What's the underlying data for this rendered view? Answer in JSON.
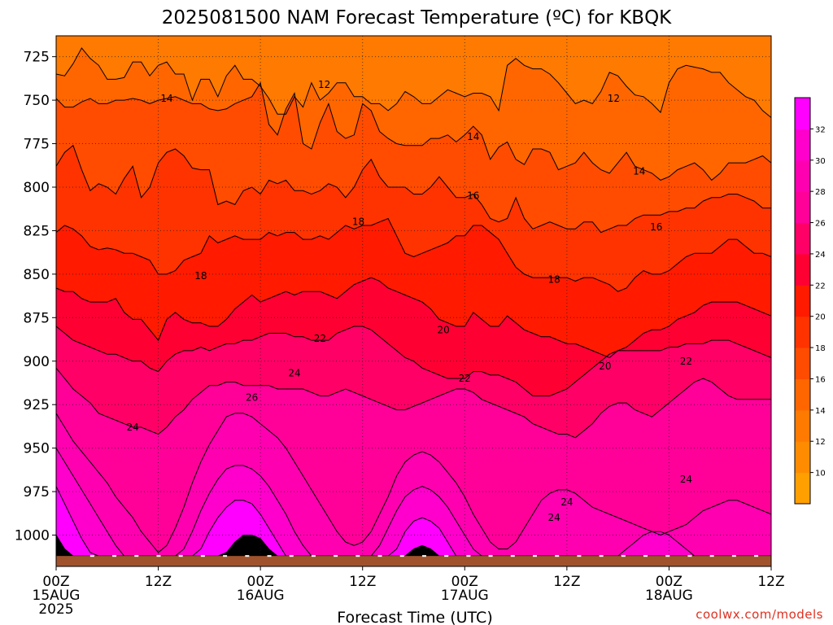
{
  "title": "2025081500 NAM Forecast Temperature (ºC) for KBQK",
  "credit": "coolwx.com/models",
  "chart_data": {
    "type": "heatmap",
    "title": "2025081500 NAM Forecast Temperature (ºC) for KBQK",
    "xlabel": "Forecast Time (UTC)",
    "ylabel": "",
    "x_range_hours": [
      0,
      84
    ],
    "y_range_hpa": [
      713,
      1018
    ],
    "ground_level_hpa": 1012,
    "y_ticks": [
      725,
      750,
      775,
      800,
      825,
      850,
      875,
      900,
      925,
      950,
      975,
      1000
    ],
    "x_ticks": [
      {
        "hour": 0,
        "label": "00Z",
        "date": "15AUG",
        "year": "2025"
      },
      {
        "hour": 12,
        "label": "12Z",
        "date": "",
        "year": ""
      },
      {
        "hour": 24,
        "label": "00Z",
        "date": "16AUG",
        "year": ""
      },
      {
        "hour": 36,
        "label": "12Z",
        "date": "",
        "year": ""
      },
      {
        "hour": 48,
        "label": "00Z",
        "date": "17AUG",
        "year": ""
      },
      {
        "hour": 60,
        "label": "12Z",
        "date": "",
        "year": ""
      },
      {
        "hour": 72,
        "label": "00Z",
        "date": "18AUG",
        "year": ""
      },
      {
        "hour": 84,
        "label": "12Z",
        "date": "",
        "year": ""
      }
    ],
    "colorbar": {
      "levels": [
        8,
        10,
        12,
        14,
        16,
        18,
        20,
        22,
        24,
        26,
        28,
        30,
        32,
        34
      ],
      "labels": [
        "10",
        "12",
        "14",
        "16",
        "18",
        "20",
        "22",
        "24",
        "26",
        "28",
        "30",
        "32"
      ],
      "colors": [
        "#ff9f00",
        "#ff8c00",
        "#ff7a00",
        "#ff6600",
        "#ff4c00",
        "#ff3300",
        "#ff1a00",
        "#ff0033",
        "#ff0066",
        "#ff0099",
        "#ff00b0",
        "#ff00cc",
        "#ff00ff"
      ]
    },
    "isotherms": [
      {
        "value": 12,
        "pressures": [
          735,
          736,
          729,
          720,
          726,
          730,
          738,
          738,
          737,
          728,
          728,
          736,
          730,
          728,
          735,
          735,
          750,
          738,
          738,
          748,
          736,
          730,
          738,
          738,
          742,
          749,
          758,
          758,
          748,
          754,
          740,
          750,
          746,
          740,
          740,
          748,
          748,
          752,
          752,
          756,
          752,
          745,
          748,
          752,
          752,
          748,
          744,
          746,
          748,
          746,
          746,
          748,
          756,
          730,
          726,
          730,
          732,
          732,
          735,
          740,
          746,
          752,
          750,
          752,
          745,
          734,
          736,
          742,
          747,
          748,
          752,
          757,
          740,
          732,
          730,
          731,
          732,
          734,
          734,
          740,
          744,
          748,
          750,
          756,
          760
        ]
      },
      {
        "value": 14,
        "pressures": [
          749,
          754,
          754,
          751,
          749,
          752,
          752,
          750,
          750,
          749,
          750,
          752,
          750,
          749,
          748,
          750,
          752,
          752,
          755,
          756,
          755,
          752,
          750,
          748,
          740,
          764,
          770,
          755,
          746,
          775,
          778,
          763,
          752,
          768,
          772,
          770,
          752,
          756,
          768,
          772,
          775,
          776,
          776,
          776,
          772,
          772,
          770,
          774,
          770,
          765,
          770,
          784,
          777,
          774,
          784,
          787,
          778,
          778,
          780,
          790,
          788,
          786,
          780,
          786,
          790,
          792,
          786,
          780,
          788,
          790,
          792,
          796,
          794,
          790,
          788,
          786,
          790,
          796,
          792,
          786,
          786,
          786,
          784,
          782,
          786
        ]
      },
      {
        "value": 16,
        "pressures": [
          788,
          780,
          776,
          790,
          802,
          798,
          800,
          804,
          795,
          788,
          806,
          800,
          786,
          780,
          778,
          782,
          789,
          790,
          790,
          810,
          808,
          810,
          802,
          800,
          804,
          796,
          798,
          796,
          802,
          802,
          804,
          802,
          798,
          800,
          806,
          800,
          790,
          784,
          794,
          800,
          800,
          800,
          804,
          804,
          800,
          794,
          800,
          806,
          806,
          804,
          810,
          818,
          820,
          818,
          806,
          818,
          824,
          822,
          820,
          822,
          824,
          824,
          820,
          820,
          826,
          824,
          822,
          822,
          818,
          816,
          816,
          816,
          814,
          814,
          812,
          812,
          808,
          806,
          806,
          804,
          804,
          806,
          808,
          812,
          812
        ]
      },
      {
        "value": 18,
        "pressures": [
          826,
          822,
          824,
          828,
          834,
          836,
          835,
          836,
          838,
          838,
          840,
          842,
          850,
          850,
          848,
          842,
          840,
          838,
          828,
          832,
          830,
          828,
          830,
          830,
          830,
          826,
          828,
          826,
          826,
          830,
          830,
          828,
          830,
          826,
          822,
          824,
          822,
          822,
          820,
          818,
          828,
          838,
          840,
          838,
          836,
          834,
          832,
          828,
          828,
          822,
          822,
          826,
          830,
          838,
          846,
          850,
          852,
          852,
          852,
          852,
          852,
          854,
          852,
          852,
          854,
          856,
          860,
          858,
          852,
          848,
          850,
          850,
          848,
          844,
          840,
          838,
          838,
          838,
          834,
          830,
          830,
          834,
          838,
          838,
          840
        ]
      },
      {
        "value": 20,
        "pressures": [
          858,
          860,
          860,
          864,
          866,
          866,
          866,
          864,
          872,
          876,
          876,
          882,
          888,
          876,
          872,
          876,
          878,
          878,
          880,
          880,
          876,
          870,
          866,
          862,
          866,
          864,
          862,
          860,
          862,
          860,
          860,
          860,
          862,
          864,
          860,
          856,
          854,
          852,
          854,
          858,
          860,
          862,
          864,
          866,
          870,
          876,
          878,
          880,
          880,
          872,
          876,
          880,
          880,
          874,
          878,
          882,
          884,
          886,
          886,
          888,
          890,
          890,
          892,
          894,
          896,
          898,
          894,
          892,
          888,
          884,
          882,
          882,
          880,
          876,
          874,
          872,
          868,
          866,
          866,
          866,
          866,
          868,
          870,
          872,
          874
        ]
      },
      {
        "value": 22,
        "pressures": [
          880,
          884,
          888,
          890,
          892,
          894,
          896,
          896,
          898,
          900,
          900,
          904,
          906,
          900,
          896,
          894,
          894,
          892,
          894,
          892,
          890,
          890,
          888,
          888,
          886,
          884,
          884,
          884,
          886,
          886,
          888,
          888,
          888,
          884,
          882,
          880,
          880,
          882,
          886,
          890,
          894,
          898,
          900,
          904,
          906,
          908,
          910,
          910,
          910,
          906,
          906,
          908,
          908,
          910,
          912,
          916,
          920,
          920,
          920,
          918,
          916,
          912,
          908,
          904,
          900,
          896,
          894,
          894,
          894,
          894,
          894,
          894,
          892,
          892,
          890,
          890,
          890,
          888,
          888,
          888,
          890,
          892,
          894,
          896,
          898
        ]
      },
      {
        "value": 24,
        "pressures": [
          904,
          910,
          916,
          920,
          924,
          930,
          932,
          934,
          936,
          938,
          938,
          940,
          942,
          938,
          932,
          928,
          922,
          918,
          914,
          914,
          912,
          912,
          914,
          914,
          914,
          914,
          916,
          916,
          916,
          916,
          918,
          920,
          920,
          918,
          916,
          918,
          920,
          922,
          924,
          926,
          928,
          928,
          926,
          924,
          922,
          920,
          918,
          916,
          916,
          918,
          922,
          924,
          926,
          928,
          930,
          932,
          936,
          938,
          940,
          942,
          942,
          944,
          940,
          936,
          930,
          926,
          924,
          924,
          928,
          930,
          932,
          928,
          924,
          920,
          916,
          912,
          910,
          912,
          916,
          920,
          922,
          922,
          922,
          922,
          922
        ]
      },
      {
        "value": 26,
        "pressures": [
          930,
          938,
          946,
          952,
          958,
          964,
          970,
          978,
          984,
          990,
          998,
          1004,
          1010,
          1006,
          996,
          984,
          970,
          958,
          948,
          940,
          932,
          930,
          930,
          932,
          936,
          940,
          944,
          950,
          958,
          966,
          974,
          982,
          990,
          998,
          1004,
          1006,
          1004,
          998,
          988,
          978,
          966,
          958,
          954,
          952,
          954,
          958,
          964,
          970,
          978,
          988,
          996,
          1004,
          1008,
          1008,
          1004,
          996,
          988,
          980,
          976,
          974,
          974,
          976,
          980,
          984,
          986,
          988,
          990,
          992,
          994,
          996,
          998,
          1000,
          998,
          996,
          994,
          990,
          986,
          984,
          982,
          980,
          980,
          982,
          984,
          986,
          988
        ]
      },
      {
        "value": 28,
        "pressures": [
          950,
          958,
          966,
          974,
          982,
          990,
          998,
          1006,
          1012,
          1012,
          1012,
          1012,
          1012,
          1012,
          1012,
          1008,
          998,
          986,
          976,
          968,
          962,
          960,
          960,
          962,
          966,
          972,
          980,
          988,
          998,
          1006,
          1012,
          1012,
          1012,
          1012,
          1012,
          1012,
          1012,
          1012,
          1006,
          996,
          986,
          978,
          974,
          972,
          974,
          978,
          984,
          992,
          1000,
          1008,
          1012,
          1012,
          1012,
          1012,
          1012,
          1012,
          1012,
          1012,
          1012,
          1012,
          1012,
          1012,
          1012,
          1012,
          1012,
          1012,
          1012,
          1008,
          1004,
          1000,
          998,
          998,
          1000,
          1004,
          1008,
          1012,
          1012,
          1012,
          1012,
          1012,
          1012,
          1012,
          1012,
          1012,
          1012
        ]
      },
      {
        "value": 30,
        "pressures": [
          972,
          982,
          992,
          1002,
          1010,
          1012,
          1012,
          1012,
          1012,
          1012,
          1012,
          1012,
          1012,
          1012,
          1012,
          1012,
          1012,
          1008,
          998,
          990,
          984,
          980,
          980,
          982,
          988,
          996,
          1004,
          1012,
          1012,
          1012,
          1012,
          1012,
          1012,
          1012,
          1012,
          1012,
          1012,
          1012,
          1012,
          1012,
          1008,
          998,
          992,
          990,
          992,
          996,
          1004,
          1012,
          1012,
          1012,
          1012,
          1012,
          1012,
          1012,
          1012,
          1012,
          1012,
          1012,
          1012,
          1012,
          1012,
          1012,
          1012,
          1012,
          1012,
          1012,
          1012,
          1012,
          1012,
          1012,
          1012,
          1012,
          1012,
          1012,
          1012,
          1012,
          1012,
          1012,
          1012,
          1012,
          1012,
          1012,
          1012,
          1012,
          1012
        ]
      },
      {
        "value": 32,
        "pressures": [
          1000,
          1008,
          1012,
          1012,
          1012,
          1012,
          1012,
          1012,
          1012,
          1012,
          1012,
          1012,
          1012,
          1012,
          1012,
          1012,
          1012,
          1012,
          1012,
          1012,
          1010,
          1004,
          1000,
          1000,
          1002,
          1008,
          1012,
          1012,
          1012,
          1012,
          1012,
          1012,
          1012,
          1012,
          1012,
          1012,
          1012,
          1012,
          1012,
          1012,
          1012,
          1012,
          1008,
          1006,
          1008,
          1012,
          1012,
          1012,
          1012,
          1012,
          1012,
          1012,
          1012,
          1012,
          1012,
          1012,
          1012,
          1012,
          1012,
          1012,
          1012,
          1012,
          1012,
          1012,
          1012,
          1012,
          1012,
          1012,
          1012,
          1012,
          1012,
          1012,
          1012,
          1012,
          1012,
          1012,
          1012,
          1012,
          1012,
          1012,
          1012,
          1012,
          1012,
          1012,
          1012
        ]
      }
    ],
    "contour_labels": [
      {
        "text": "12",
        "hour": 31.5,
        "hpa": 741
      },
      {
        "text": "12",
        "hour": 65.5,
        "hpa": 749
      },
      {
        "text": "14",
        "hour": 13.0,
        "hpa": 749
      },
      {
        "text": "14",
        "hour": 49.0,
        "hpa": 771
      },
      {
        "text": "14",
        "hour": 68.5,
        "hpa": 791
      },
      {
        "text": "16",
        "hour": 49.0,
        "hpa": 805
      },
      {
        "text": "16",
        "hour": 70.5,
        "hpa": 823
      },
      {
        "text": "18",
        "hour": 35.5,
        "hpa": 820
      },
      {
        "text": "18",
        "hour": 17.0,
        "hpa": 851
      },
      {
        "text": "18",
        "hour": 58.5,
        "hpa": 853
      },
      {
        "text": "20",
        "hour": 45.5,
        "hpa": 882
      },
      {
        "text": "20",
        "hour": 64.5,
        "hpa": 903
      },
      {
        "text": "22",
        "hour": 31.0,
        "hpa": 887
      },
      {
        "text": "22",
        "hour": 48.0,
        "hpa": 910
      },
      {
        "text": "22",
        "hour": 74.0,
        "hpa": 900
      },
      {
        "text": "24",
        "hour": 28.0,
        "hpa": 907
      },
      {
        "text": "24",
        "hour": 9.0,
        "hpa": 938
      },
      {
        "text": "24",
        "hour": 60.0,
        "hpa": 981
      },
      {
        "text": "24",
        "hour": 58.5,
        "hpa": 990
      },
      {
        "text": "24",
        "hour": 74.0,
        "hpa": 968
      },
      {
        "text": "26",
        "hour": 23.0,
        "hpa": 921
      }
    ]
  }
}
